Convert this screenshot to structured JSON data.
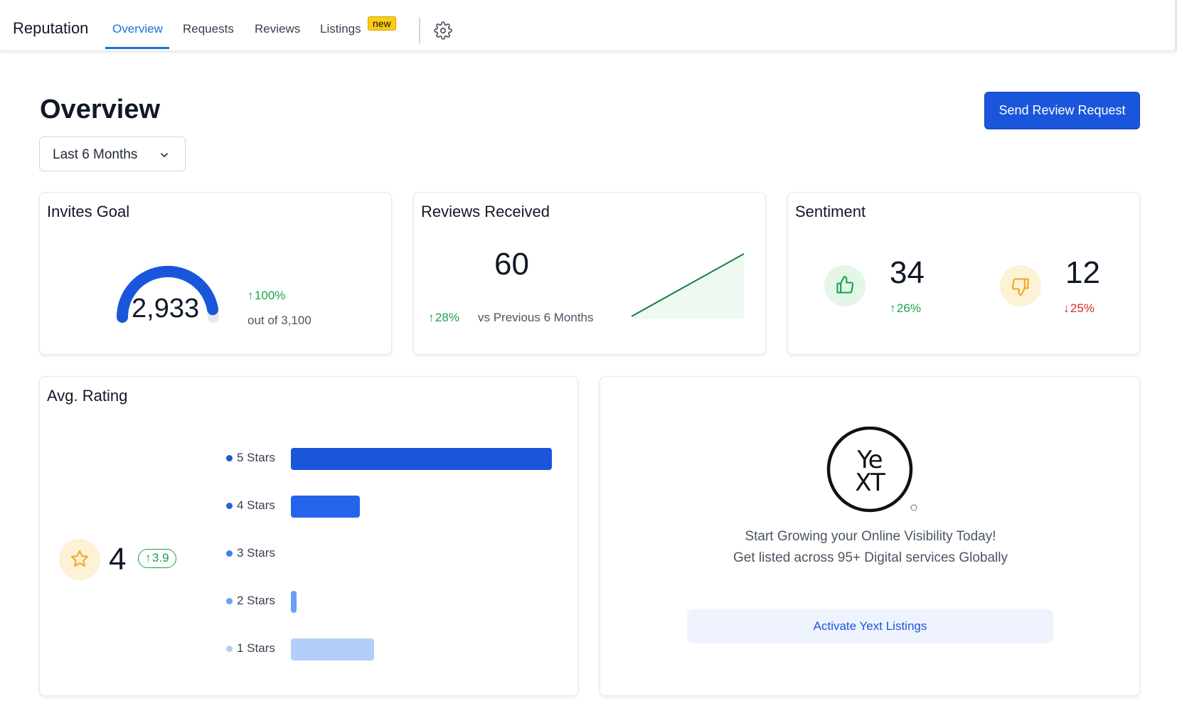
{
  "nav": {
    "brand": "Reputation",
    "tabs": [
      {
        "label": "Overview",
        "active": true
      },
      {
        "label": "Requests",
        "active": false
      },
      {
        "label": "Reviews",
        "active": false
      },
      {
        "label": "Listings",
        "active": false
      }
    ],
    "listings_badge": "new",
    "settings_icon": "gear-icon"
  },
  "header": {
    "title": "Overview",
    "range_select": "Last 6 Months",
    "send_button": "Send Review Request"
  },
  "invites_goal": {
    "title": "Invites Goal",
    "value": "2,933",
    "change": "100%",
    "out_of": "out of 3,100",
    "progress": 0.946
  },
  "reviews_received": {
    "title": "Reviews Received",
    "value": "60",
    "change": "28%",
    "comparison": "vs Previous 6 Months"
  },
  "sentiment": {
    "title": "Sentiment",
    "positive": {
      "value": "34",
      "change": "26%"
    },
    "negative": {
      "value": "12",
      "change": "25%"
    }
  },
  "avg_rating": {
    "title": "Avg. Rating",
    "value": "4",
    "change": "3.9",
    "bars": [
      {
        "label": "5 Stars",
        "fraction": 1.0,
        "color": "#1a56db"
      },
      {
        "label": "4 Stars",
        "fraction": 0.265,
        "color": "#2563eb"
      },
      {
        "label": "3 Stars",
        "fraction": 0.0,
        "color": "#3b82f6"
      },
      {
        "label": "2 Stars",
        "fraction": 0.02,
        "color": "#6b9ff5"
      },
      {
        "label": "1 Stars",
        "fraction": 0.32,
        "color": "#b5cdfa"
      }
    ]
  },
  "yext": {
    "logo_text": "YEXT",
    "line1": "Start Growing your Online Visibility Today!",
    "line2": "Get listed across 95+ Digital services Globally",
    "button": "Activate Yext Listings"
  },
  "colors": {
    "primary": "#1a56db",
    "positive": "#16a34a",
    "negative": "#dc2626",
    "warning": "#f5a623"
  }
}
